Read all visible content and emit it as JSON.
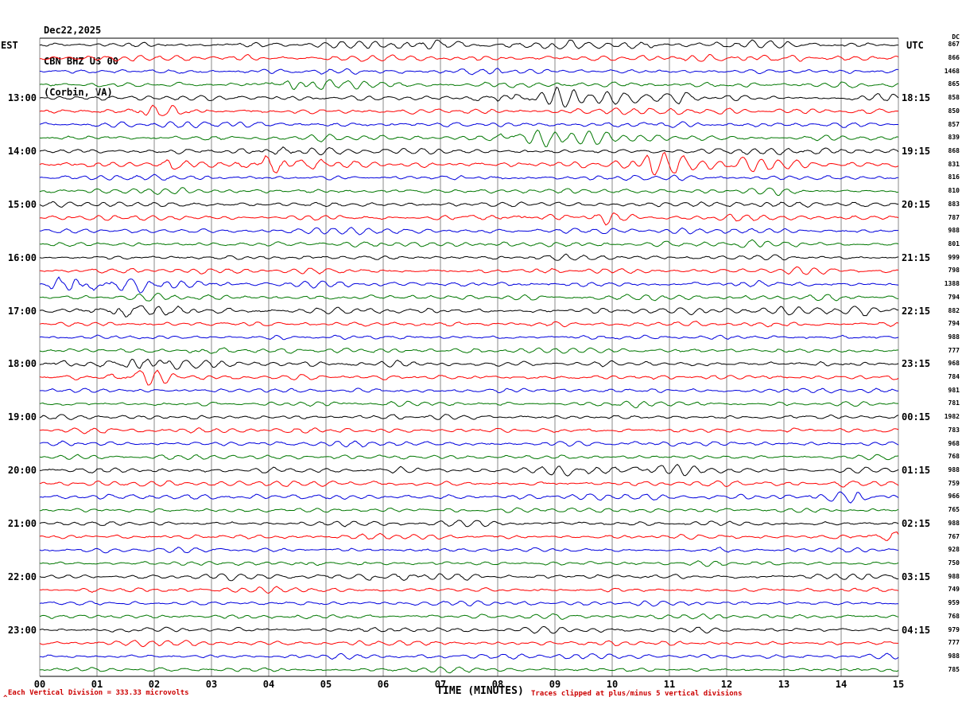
{
  "title": {
    "date": "Dec22,2025",
    "station": "CBN BHZ US 00",
    "location": "(Corbin, VA)"
  },
  "axes": {
    "left_header": "EST",
    "right_header": "UTC",
    "dc_header": "DC",
    "x_title": "TIME (MINUTES)",
    "x_ticks": [
      "00",
      "01",
      "02",
      "03",
      "04",
      "05",
      "06",
      "07",
      "08",
      "09",
      "10",
      "11",
      "12",
      "13",
      "14",
      "15"
    ],
    "left_hours": [
      "13:00",
      "14:00",
      "15:00",
      "16:00",
      "17:00",
      "18:00",
      "19:00",
      "20:00",
      "21:00",
      "22:00",
      "23:00"
    ],
    "right_times": [
      "18:15",
      "19:15",
      "20:15",
      "21:15",
      "22:15",
      "23:15",
      "00:15",
      "01:15",
      "02:15",
      "03:15",
      "04:15"
    ]
  },
  "footer": {
    "left_note": "Each Vertical Division =  333.33 microvolts",
    "right_note": "Traces clipped at plus/minus 5 vertical divisions",
    "caret": "^"
  },
  "colors": {
    "black": "#000000",
    "red": "#ff0000",
    "blue": "#0000dd",
    "green": "#007700",
    "grid": "#8a8a8a",
    "note": "#cc0000"
  },
  "chart_data": {
    "type": "line",
    "variant": "helicorder-seismogram",
    "title": "CBN BHZ US 00 (Corbin, VA) Dec22,2025",
    "xlabel": "TIME (MINUTES)",
    "x_range": [
      0,
      15
    ],
    "rows_per_hour": 4,
    "minutes_per_row": 15,
    "first_row_start_est": "12:00",
    "scale_microvolts_per_division": 333.33,
    "clip_divisions": 5,
    "rows": [
      {
        "c": "black",
        "t": "12:00",
        "dc": "867",
        "n": 1.0,
        "ev": [
          {
            "m": 6.6,
            "a": 1.5,
            "w": 0.5
          },
          {
            "m": 9.0,
            "a": 2.5,
            "w": 0.15
          },
          {
            "m": 10.6,
            "a": 1.2,
            "w": 0.4
          },
          {
            "m": 12.4,
            "a": 0.8,
            "w": 0.3
          }
        ]
      },
      {
        "c": "red",
        "t": "12:15",
        "dc": "866",
        "n": 1.0,
        "ev": [
          {
            "m": 3.4,
            "a": 0.6,
            "w": 0.3
          },
          {
            "m": 11.7,
            "a": 1.5,
            "w": 0.4
          },
          {
            "m": 13.1,
            "a": 0.8,
            "w": 0.3
          }
        ]
      },
      {
        "c": "blue",
        "t": "12:30",
        "dc": "1468",
        "n": 0.9,
        "ev": [
          {
            "m": 4.9,
            "a": 0.8,
            "w": 0.3
          },
          {
            "m": 8.0,
            "a": 0.6,
            "w": 0.4
          }
        ]
      },
      {
        "c": "green",
        "t": "12:45",
        "dc": "865",
        "n": 0.9,
        "ev": [
          {
            "m": 4.3,
            "a": 2.0,
            "w": 0.5
          },
          {
            "m": 5.2,
            "a": 1.0,
            "w": 0.3
          }
        ]
      },
      {
        "c": "black",
        "t": "13:00",
        "dc": "858",
        "n": 1.0,
        "ev": [
          {
            "m": 8.6,
            "a": 2.2,
            "w": 0.6
          },
          {
            "m": 9.5,
            "a": 1.5,
            "w": 0.3
          },
          {
            "m": 11.2,
            "a": 1.8,
            "w": 0.4
          },
          {
            "m": 14.6,
            "a": 1.0,
            "w": 0.3
          }
        ]
      },
      {
        "c": "red",
        "t": "13:15",
        "dc": "850",
        "n": 1.0,
        "ev": [
          {
            "m": 1.9,
            "a": 1.6,
            "w": 0.5
          },
          {
            "m": 2.6,
            "a": 1.2,
            "w": 0.3
          },
          {
            "m": 11.0,
            "a": 0.8,
            "w": 0.3
          }
        ]
      },
      {
        "c": "blue",
        "t": "13:30",
        "dc": "857",
        "n": 0.9,
        "ev": [
          {
            "m": 3.2,
            "a": 0.6,
            "w": 0.3
          },
          {
            "m": 10.7,
            "a": 1.2,
            "w": 0.4
          }
        ]
      },
      {
        "c": "green",
        "t": "13:45",
        "dc": "839",
        "n": 0.9,
        "ev": [
          {
            "m": 8.5,
            "a": 1.2,
            "w": 0.3
          },
          {
            "m": 9.0,
            "a": 2.2,
            "w": 0.4
          }
        ]
      },
      {
        "c": "black",
        "t": "14:00",
        "dc": "868",
        "n": 0.9,
        "ev": [
          {
            "m": 4.3,
            "a": 2.2,
            "w": 0.35
          },
          {
            "m": 12.3,
            "a": 0.8,
            "w": 0.3
          }
        ]
      },
      {
        "c": "red",
        "t": "14:15",
        "dc": "831",
        "n": 1.0,
        "ev": [
          {
            "m": 0.75,
            "a": 2.0,
            "w": 0.2
          },
          {
            "m": 2.4,
            "a": 1.8,
            "w": 0.25
          },
          {
            "m": 4.1,
            "a": 5.0,
            "w": 0.35
          },
          {
            "m": 5.0,
            "a": 1.5,
            "w": 0.2
          },
          {
            "m": 10.8,
            "a": 4.5,
            "w": 0.3
          },
          {
            "m": 12.1,
            "a": 1.5,
            "w": 0.25
          }
        ]
      },
      {
        "c": "blue",
        "t": "14:30",
        "dc": "816",
        "n": 0.8,
        "ev": [
          {
            "m": 2.0,
            "a": 0.5,
            "w": 0.3
          }
        ]
      },
      {
        "c": "green",
        "t": "14:45",
        "dc": "810",
        "n": 0.8,
        "ev": [
          {
            "m": 2.0,
            "a": 0.8,
            "w": 0.3
          },
          {
            "m": 12.5,
            "a": 0.7,
            "w": 0.3
          }
        ]
      },
      {
        "c": "black",
        "t": "15:00",
        "dc": "883",
        "n": 0.8,
        "ev": [
          {
            "m": 0.3,
            "a": 0.8,
            "w": 0.2
          }
        ]
      },
      {
        "c": "red",
        "t": "15:15",
        "dc": "787",
        "n": 0.9,
        "ev": [
          {
            "m": 7.6,
            "a": 1.0,
            "w": 0.2
          },
          {
            "m": 8.5,
            "a": 2.5,
            "w": 0.3
          },
          {
            "m": 9.8,
            "a": 2.0,
            "w": 0.2
          }
        ]
      },
      {
        "c": "blue",
        "t": "15:30",
        "dc": "988",
        "n": 0.8,
        "ev": []
      },
      {
        "c": "green",
        "t": "15:45",
        "dc": "801",
        "n": 0.8,
        "ev": [
          {
            "m": 12.4,
            "a": 1.5,
            "w": 0.25
          }
        ]
      },
      {
        "c": "black",
        "t": "16:00",
        "dc": "999",
        "n": 0.8,
        "ev": [
          {
            "m": 9.2,
            "a": 0.7,
            "w": 0.3
          }
        ]
      },
      {
        "c": "red",
        "t": "16:15",
        "dc": "798",
        "n": 0.9,
        "ev": []
      },
      {
        "c": "blue",
        "t": "16:30",
        "dc": "1388",
        "n": 1.1,
        "ev": [
          {
            "m": 0.4,
            "a": 2.5,
            "w": 0.5
          },
          {
            "m": 1.2,
            "a": 2.2,
            "w": 0.5
          },
          {
            "m": 2.2,
            "a": 1.2,
            "w": 0.5
          }
        ]
      },
      {
        "c": "green",
        "t": "16:45",
        "dc": "794",
        "n": 0.9,
        "ev": []
      },
      {
        "c": "black",
        "t": "17:00",
        "dc": "882",
        "n": 1.1,
        "ev": [
          {
            "m": 1.3,
            "a": 2.2,
            "w": 0.4
          },
          {
            "m": 2.2,
            "a": 1.5,
            "w": 0.5
          },
          {
            "m": 14.5,
            "a": 1.5,
            "w": 0.3
          }
        ]
      },
      {
        "c": "red",
        "t": "17:15",
        "dc": "794",
        "n": 0.9,
        "ev": []
      },
      {
        "c": "blue",
        "t": "17:30",
        "dc": "988",
        "n": 0.8,
        "ev": []
      },
      {
        "c": "green",
        "t": "17:45",
        "dc": "777",
        "n": 0.9,
        "ev": [
          {
            "m": 3.0,
            "a": 2.2,
            "w": 0.3
          }
        ]
      },
      {
        "c": "black",
        "t": "18:00",
        "dc": "968",
        "n": 1.0,
        "ev": [
          {
            "m": 0.5,
            "a": 1.0,
            "w": 0.3
          },
          {
            "m": 1.6,
            "a": 2.0,
            "w": 0.3
          },
          {
            "m": 2.2,
            "a": 2.2,
            "w": 0.4
          }
        ]
      },
      {
        "c": "red",
        "t": "18:15",
        "dc": "784",
        "n": 0.9,
        "ev": [
          {
            "m": 1.5,
            "a": 2.8,
            "w": 0.35
          },
          {
            "m": 2.1,
            "a": 1.5,
            "w": 0.3
          }
        ]
      },
      {
        "c": "blue",
        "t": "18:30",
        "dc": "981",
        "n": 0.8,
        "ev": [
          {
            "m": 6.4,
            "a": 1.5,
            "w": 0.15
          }
        ]
      },
      {
        "c": "green",
        "t": "18:45",
        "dc": "781",
        "n": 0.8,
        "ev": [
          {
            "m": 10.2,
            "a": 1.2,
            "w": 0.15
          }
        ]
      },
      {
        "c": "black",
        "t": "19:00",
        "dc": "1982",
        "n": 0.8,
        "ev": [
          {
            "m": 0.15,
            "a": 2.0,
            "w": 0.12
          }
        ]
      },
      {
        "c": "red",
        "t": "19:15",
        "dc": "783",
        "n": 0.8,
        "ev": []
      },
      {
        "c": "blue",
        "t": "19:30",
        "dc": "968",
        "n": 0.8,
        "ev": []
      },
      {
        "c": "green",
        "t": "19:45",
        "dc": "768",
        "n": 0.8,
        "ev": []
      },
      {
        "c": "black",
        "t": "20:00",
        "dc": "988",
        "n": 0.9,
        "ev": [
          {
            "m": 9.5,
            "a": 1.2,
            "w": 0.6
          },
          {
            "m": 10.8,
            "a": 1.8,
            "w": 0.25
          }
        ]
      },
      {
        "c": "red",
        "t": "20:15",
        "dc": "759",
        "n": 0.9,
        "ev": []
      },
      {
        "c": "blue",
        "t": "20:30",
        "dc": "966",
        "n": 0.9,
        "ev": [
          {
            "m": 14.2,
            "a": 1.5,
            "w": 0.5
          }
        ]
      },
      {
        "c": "green",
        "t": "20:45",
        "dc": "765",
        "n": 0.8,
        "ev": []
      },
      {
        "c": "black",
        "t": "21:00",
        "dc": "988",
        "n": 0.8,
        "ev": []
      },
      {
        "c": "red",
        "t": "21:15",
        "dc": "767",
        "n": 0.9,
        "ev": [
          {
            "m": 14.8,
            "a": 3.0,
            "w": 0.25
          }
        ]
      },
      {
        "c": "blue",
        "t": "21:30",
        "dc": "928",
        "n": 0.8,
        "ev": [
          {
            "m": 12.1,
            "a": 1.5,
            "w": 0.15
          }
        ]
      },
      {
        "c": "green",
        "t": "21:45",
        "dc": "750",
        "n": 0.8,
        "ev": [
          {
            "m": 4.6,
            "a": 1.5,
            "w": 0.15
          },
          {
            "m": 5.7,
            "a": 1.0,
            "w": 0.15
          }
        ]
      },
      {
        "c": "black",
        "t": "22:00",
        "dc": "988",
        "n": 0.9,
        "ev": [
          {
            "m": 5.8,
            "a": 1.2,
            "w": 0.4
          },
          {
            "m": 6.5,
            "a": 1.0,
            "w": 0.3
          }
        ]
      },
      {
        "c": "red",
        "t": "22:15",
        "dc": "749",
        "n": 0.8,
        "ev": []
      },
      {
        "c": "blue",
        "t": "22:30",
        "dc": "959",
        "n": 0.8,
        "ev": []
      },
      {
        "c": "green",
        "t": "22:45",
        "dc": "768",
        "n": 0.8,
        "ev": []
      },
      {
        "c": "black",
        "t": "23:00",
        "dc": "979",
        "n": 0.9,
        "ev": [
          {
            "m": 1.5,
            "a": 0.6,
            "w": 0.4
          }
        ]
      },
      {
        "c": "red",
        "t": "23:15",
        "dc": "777",
        "n": 0.8,
        "ev": []
      },
      {
        "c": "blue",
        "t": "23:30",
        "dc": "988",
        "n": 0.8,
        "ev": []
      },
      {
        "c": "green",
        "t": "23:45",
        "dc": "785",
        "n": 0.8,
        "ev": []
      }
    ]
  }
}
